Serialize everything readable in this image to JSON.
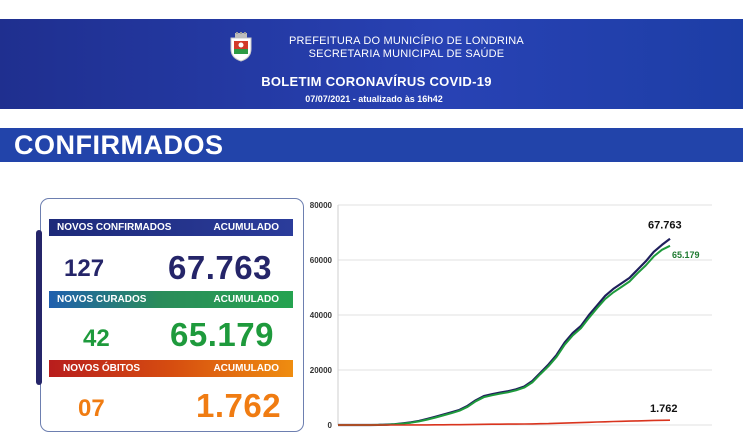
{
  "header": {
    "line1": "PREFEITURA DO MUNICÍPIO DE LONDRINA",
    "line2": "SECRETARIA MUNICIPAL DE SAÚDE",
    "bulletin_title": "BOLETIM CORONAVÍRUS COVID-19",
    "date_line": "07/07/2021 - atualizado às 16h42",
    "crest_icon": "municipal-coat-of-arms-icon"
  },
  "section": {
    "title": "CONFIRMADOS"
  },
  "stats": {
    "confirmados": {
      "label": "NOVOS CONFIRMADOS",
      "acc_label": "ACUMULADO",
      "new": "127",
      "total": "67.763",
      "color": "#252569"
    },
    "curados": {
      "label": "NOVOS CURADOS",
      "acc_label": "ACUMULADO",
      "new": "42",
      "total": "65.179",
      "color": "#1e9a3c"
    },
    "obitos": {
      "label": "NOVOS ÓBITOS",
      "acc_label": "ACUMULADO",
      "new": "07",
      "total": "1.762",
      "color": "#f07c12"
    }
  },
  "chart_data": {
    "type": "line",
    "ylim": [
      0,
      80000
    ],
    "yticks": [
      0,
      20000,
      40000,
      60000,
      80000
    ],
    "ytick_labels": [
      "0",
      "20000",
      "40000",
      "60000",
      "80000"
    ],
    "grid": true,
    "series": [
      {
        "color": "#1f1f5c",
        "end_label": "67.763",
        "values": [
          0,
          0,
          0,
          0,
          0,
          50,
          150,
          300,
          600,
          1000,
          1500,
          2200,
          3000,
          3800,
          4600,
          5500,
          7000,
          9000,
          10500,
          11200,
          11800,
          12300,
          13000,
          14000,
          16000,
          19000,
          22000,
          25500,
          30000,
          33500,
          36000,
          40000,
          43500,
          47000,
          49500,
          51500,
          53500,
          56500,
          59500,
          63000,
          65500,
          67763
        ],
        "stroke_width": 2.2
      },
      {
        "color": "#1e9a3c",
        "end_label": "65.179",
        "values": [
          0,
          0,
          0,
          0,
          0,
          40,
          120,
          250,
          500,
          850,
          1300,
          1950,
          2700,
          3500,
          4300,
          5200,
          6600,
          8600,
          10100,
          10800,
          11400,
          11900,
          12600,
          13600,
          15500,
          18500,
          21400,
          24800,
          29200,
          32600,
          35200,
          39000,
          42500,
          45800,
          48200,
          50200,
          52200,
          55200,
          58000,
          61300,
          63700,
          65179
        ],
        "stroke_width": 2
      },
      {
        "color": "#d9341e",
        "end_label": "1.762",
        "values": [
          0,
          0,
          0,
          0,
          0,
          0,
          2,
          5,
          10,
          20,
          30,
          45,
          60,
          80,
          100,
          120,
          150,
          200,
          250,
          280,
          300,
          320,
          340,
          370,
          410,
          460,
          520,
          600,
          700,
          800,
          880,
          980,
          1080,
          1180,
          1260,
          1340,
          1420,
          1500,
          1580,
          1660,
          1710,
          1762
        ],
        "stroke_width": 1.6
      }
    ]
  }
}
